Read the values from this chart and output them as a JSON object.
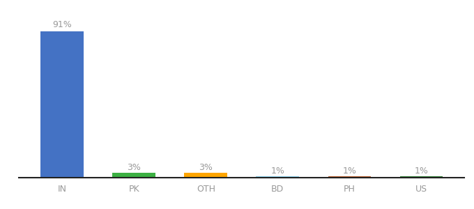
{
  "categories": [
    "IN",
    "PK",
    "OTH",
    "BD",
    "PH",
    "US"
  ],
  "values": [
    91,
    3,
    3,
    1,
    1,
    1
  ],
  "labels": [
    "91%",
    "3%",
    "3%",
    "1%",
    "1%",
    "1%"
  ],
  "bar_colors": [
    "#4472C4",
    "#3CB043",
    "#FFA500",
    "#87CEEB",
    "#B85C2A",
    "#2E7D32"
  ],
  "background_color": "#ffffff",
  "ylim": [
    0,
    100
  ],
  "bar_width": 0.6,
  "label_fontsize": 9,
  "tick_fontsize": 9,
  "label_color": "#999999",
  "tick_color": "#999999",
  "spine_color": "#222222"
}
